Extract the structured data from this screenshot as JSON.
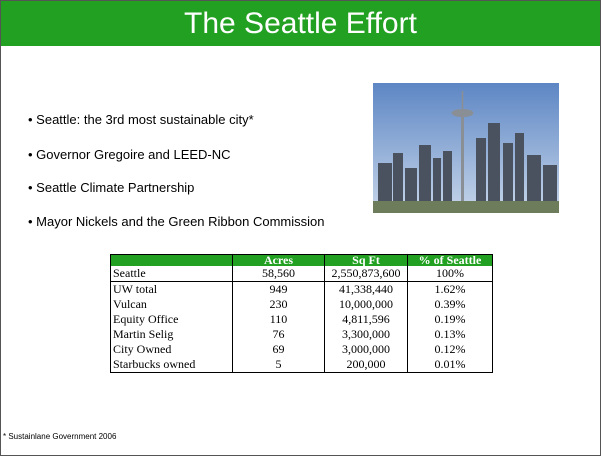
{
  "header": {
    "title": "The Seattle Effort"
  },
  "bullets": [
    "Seattle: the 3rd most sustainable city*",
    "Governor Gregoire and LEED-NC",
    "Seattle Climate Partnership",
    "Mayor Nickels and the Green Ribbon Commission"
  ],
  "table": {
    "columns": [
      "Acres",
      "Sq Ft",
      "% of Seattle"
    ],
    "rows": [
      [
        "Seattle",
        "58,560",
        "2,550,873,600",
        "100%"
      ],
      [
        "UW total",
        "949",
        "41,338,440",
        "1.62%"
      ],
      [
        "Vulcan",
        "230",
        "10,000,000",
        "0.39%"
      ],
      [
        "Equity Office",
        "110",
        "4,811,596",
        "0.19%"
      ],
      [
        "Martin Selig",
        "76",
        "3,300,000",
        "0.13%"
      ],
      [
        "City Owned",
        "69",
        "3,000,000",
        "0.12%"
      ],
      [
        "Starbucks owned",
        "5",
        "200,000",
        "0.01%"
      ]
    ]
  },
  "footnote": "* Sustainlane Government 2006"
}
